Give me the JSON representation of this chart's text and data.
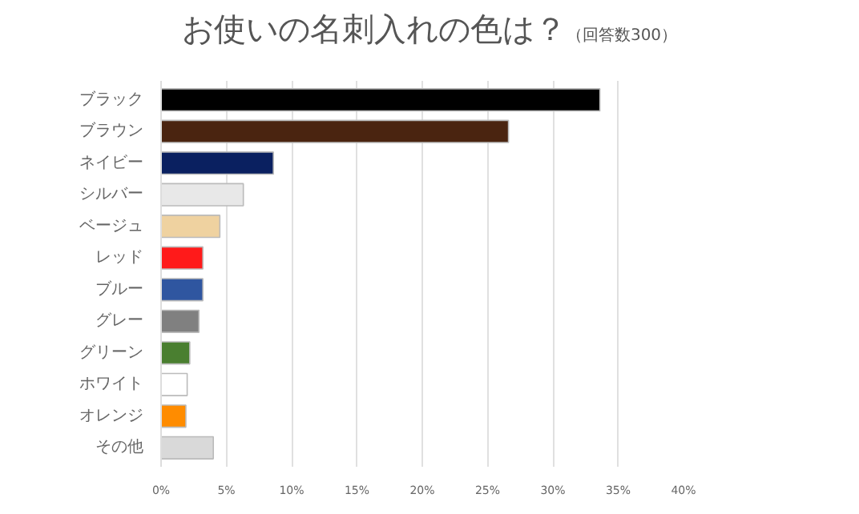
{
  "chart_data": {
    "type": "bar",
    "orientation": "horizontal",
    "title": "お使いの名刺入れの色は？",
    "subtitle": "（回答数300）",
    "categories": [
      "ブラック",
      "ブラウン",
      "ネイビー",
      "シルバー",
      "ベージュ",
      "レッド",
      "ブルー",
      "グレー",
      "グリーン",
      "ホワイト",
      "オレンジ",
      "その他"
    ],
    "values": [
      33.6,
      26.6,
      8.6,
      6.3,
      4.5,
      3.2,
      3.2,
      2.9,
      2.2,
      2.0,
      1.9,
      4.0
    ],
    "colors": [
      "#000000",
      "#4a2410",
      "#0a2060",
      "#e8e8e8",
      "#efd2a0",
      "#ff1a1a",
      "#2f56a0",
      "#808080",
      "#4a7f30",
      "#ffffff",
      "#ff8c00",
      "#d9d9d9"
    ],
    "xlim": [
      0,
      40
    ],
    "xticks": [
      {
        "value": 0,
        "label": "0%"
      },
      {
        "value": 5,
        "label": "5%"
      },
      {
        "value": 10,
        "label": "10%"
      },
      {
        "value": 15,
        "label": "15%"
      },
      {
        "value": 20,
        "label": "20%"
      },
      {
        "value": 25,
        "label": "25%"
      },
      {
        "value": 30,
        "label": "30%"
      },
      {
        "value": 35,
        "label": "35%"
      },
      {
        "value": 40,
        "label": "40%"
      }
    ],
    "grid": "x"
  }
}
